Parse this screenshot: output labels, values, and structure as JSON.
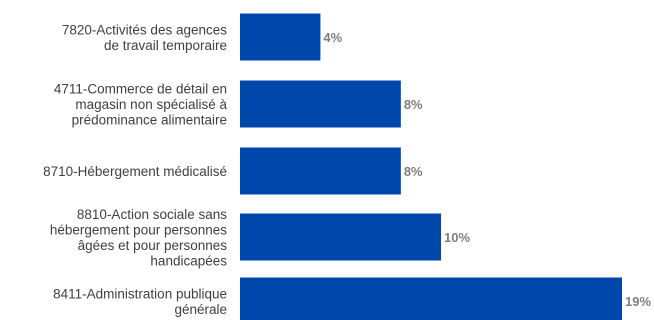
{
  "chart_data": {
    "type": "bar",
    "orientation": "horizontal",
    "categories": [
      [
        "7820-Activités des agences",
        "de travail temporaire"
      ],
      [
        "4711-Commerce de détail en",
        "magasin non spécialisé à",
        "prédominance alimentaire"
      ],
      [
        "8710-Hébergement médicalisé"
      ],
      [
        "8810-Action sociale sans",
        "hébergement pour personnes",
        "âgées et pour personnes",
        "handicapées"
      ],
      [
        "8411-Administration publique",
        "générale"
      ]
    ],
    "values": [
      4,
      8,
      8,
      10,
      19
    ],
    "value_labels": [
      "4%",
      "8%",
      "8%",
      "10%",
      "19%"
    ],
    "unit": "%",
    "xlim": [
      0,
      19
    ],
    "grid": false,
    "legend": "none",
    "colors": {
      "bar": "#0047AB",
      "value_label": "#7f7f7f",
      "category_label": "#404040"
    }
  }
}
